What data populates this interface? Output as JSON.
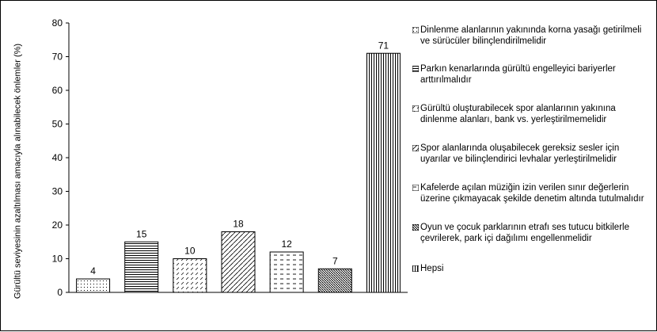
{
  "chart_data": {
    "type": "bar",
    "ylabel": "Gürültü seviyesinin azaltılması amacıyla alınabilecek önlemler (%)",
    "ylim": [
      0,
      80
    ],
    "yticks": [
      0,
      10,
      20,
      30,
      40,
      50,
      60,
      70,
      80
    ],
    "categories": [
      "Dinlenme alanlarının yakınında korna yasağı getirilmeli ve sürücüler bilinçlendirilmelidir",
      "Parkın kenarlarında gürültü engelleyici bariyerler arttırılmalıdır",
      "Gürültü oluşturabilecek spor alanlarının yakınına dinlenme alanları, bank vs. yerleştirilmemelidir",
      "Spor alanlarında oluşabilecek gereksiz sesler için uyarılar ve bilinçlendirici levhalar yerleştirilmelidir",
      "Kafelerde açılan müziğin izin verilen sınır değerlerin üzerine çıkmayacak şekilde denetim altında tutulmalıdır",
      "Oyun ve çocuk parklarının etrafı ses tutucu bitkilerle çevrilerek, park içi dağılımı engellenmelidir",
      "Hepsi"
    ],
    "values": [
      4,
      15,
      10,
      18,
      12,
      7,
      71
    ],
    "data_labels": [
      "4",
      "15",
      "10",
      "18",
      "12",
      "7",
      "71"
    ],
    "patterns": [
      "dots",
      "hlines",
      "dashes",
      "diagonal-dashes",
      "dashed-lines",
      "diagonal-hatch",
      "vlines"
    ],
    "legend": {
      "placement": "right",
      "items": [
        "Dinlenme alanlarının yakınında korna yasağı getirilmeli ve sürücüler bilinçlendirilmelidir",
        "Parkın kenarlarında gürültü engelleyici bariyerler arttırılmalıdır",
        "Gürültü oluşturabilecek spor alanlarının yakınına dinlenme alanları, bank vs. yerleştirilmemelidir",
        "Spor alanlarında oluşabilecek gereksiz sesler için uyarılar ve bilinçlendirici levhalar yerleştirilmelidir",
        "Kafelerde açılan müziğin izin verilen sınır değerlerin üzerine çıkmayacak şekilde denetim altında tutulmalıdır",
        "Oyun ve çocuk parklarının etrafı ses tutucu bitkilerle çevrilerek, park içi dağılımı engellenmelidir",
        "Hepsi"
      ]
    },
    "grid": false
  }
}
